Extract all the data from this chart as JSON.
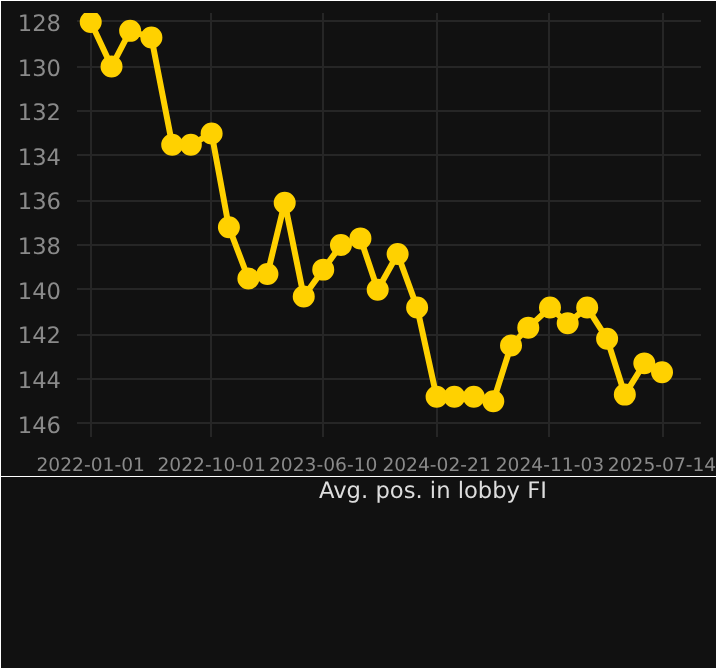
{
  "chart_data": {
    "type": "line",
    "x": [
      "2022-01-01",
      "2022-02-17",
      "2022-03-31",
      "2022-05-18",
      "2022-07-04",
      "2022-08-15",
      "2022-10-01",
      "2022-11-09",
      "2022-12-23",
      "2023-02-04",
      "2023-03-15",
      "2023-04-27",
      "2023-06-10",
      "2023-07-20",
      "2023-09-02",
      "2023-10-11",
      "2023-11-25",
      "2024-01-08",
      "2024-02-21",
      "2024-04-01",
      "2024-05-15",
      "2024-06-28",
      "2024-08-07",
      "2024-09-15",
      "2024-11-03",
      "2024-12-13",
      "2025-01-26",
      "2025-03-12",
      "2025-04-21",
      "2025-06-04",
      "2025-07-14"
    ],
    "series": [
      {
        "name": "Avg. pos. in lobby FI",
        "color": "#ffd100",
        "values": [
          128.0,
          130.0,
          128.4,
          128.7,
          133.5,
          133.5,
          133.0,
          137.2,
          139.5,
          139.3,
          136.1,
          140.3,
          139.1,
          138.0,
          137.7,
          140.0,
          138.4,
          140.8,
          144.8,
          144.8,
          144.8,
          145.0,
          142.5,
          141.7,
          140.8,
          141.5,
          140.8,
          142.2,
          144.7,
          143.3,
          143.7
        ]
      }
    ],
    "xlim": [
      "2021-12-01",
      "2025-10-10"
    ],
    "xticks": [
      "2022-01-01",
      "2022-10-01",
      "2023-06-10",
      "2024-02-21",
      "2024-11-03",
      "2025-07-14"
    ],
    "ylim": [
      146.6,
      127.6
    ],
    "yticks": [
      128,
      130,
      132,
      134,
      136,
      138,
      140,
      142,
      144,
      146
    ],
    "grid": true,
    "legend": "bottom",
    "marker": "circle",
    "line_style": "solid"
  }
}
